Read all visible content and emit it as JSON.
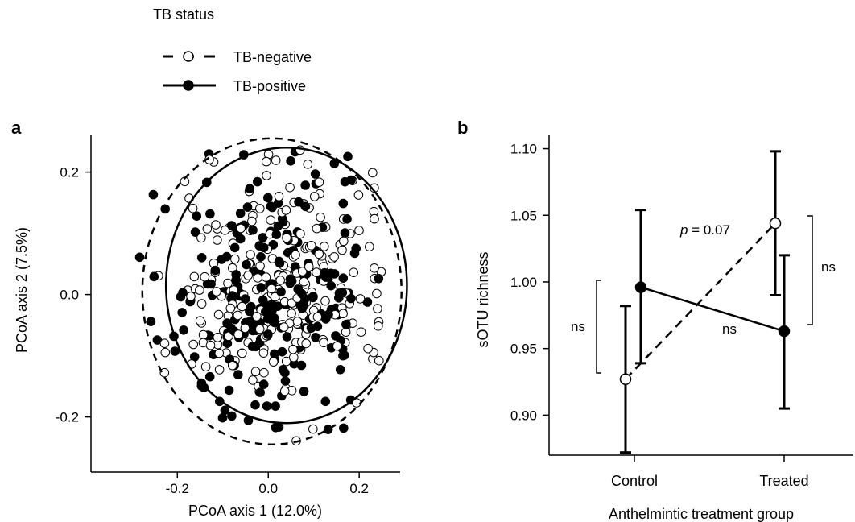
{
  "legend": {
    "title": "TB status",
    "items": [
      {
        "label": "TB-negative",
        "marker": "open-circle",
        "line": "dashed"
      },
      {
        "label": "TB-positive",
        "marker": "filled-circle",
        "line": "solid"
      }
    ]
  },
  "chart_data": [
    {
      "type": "scatter",
      "panel": "a",
      "xlabel": "PCoA axis 1 (12.0%)",
      "ylabel": "PCoA axis 2 (7.5%)",
      "xlim": [
        -0.39,
        0.29
      ],
      "ylim": [
        -0.29,
        0.26
      ],
      "xticks": [
        "-0.2",
        "0.0",
        "0.2"
      ],
      "yticks": [
        "-0.2",
        "0.0",
        "0.2"
      ],
      "legend": "top-left",
      "series": [
        {
          "name": "TB-negative",
          "ellipse": {
            "cx": 0.008,
            "cy": 0.005,
            "rx": 0.285,
            "ry": 0.25,
            "style": "dashed"
          }
        },
        {
          "name": "TB-positive",
          "ellipse": {
            "cx": 0.04,
            "cy": 0.015,
            "rx": 0.265,
            "ry": 0.225,
            "style": "solid"
          }
        }
      ]
    },
    {
      "type": "line",
      "panel": "b",
      "xlabel": "Anthelmintic treatment group",
      "ylabel": "sOTU richness",
      "categories": [
        "Control",
        "Treated"
      ],
      "ylim": [
        0.87,
        1.11
      ],
      "yticks": [
        "0.90",
        "0.95",
        "1.00",
        "1.05",
        "1.10"
      ],
      "series": [
        {
          "name": "TB-negative",
          "values": [
            0.927,
            1.044
          ],
          "lower": [
            0.872,
            0.99
          ],
          "upper": [
            0.982,
            1.098
          ],
          "style": "dashed"
        },
        {
          "name": "TB-positive",
          "values": [
            0.996,
            0.963
          ],
          "lower": [
            0.939,
            0.905
          ],
          "upper": [
            1.054,
            1.02
          ],
          "style": "solid"
        }
      ],
      "annotations": {
        "p_label": "p",
        "p_value": " = 0.07",
        "ns_left": "ns",
        "ns_middle": "ns",
        "ns_right": "ns"
      }
    }
  ]
}
